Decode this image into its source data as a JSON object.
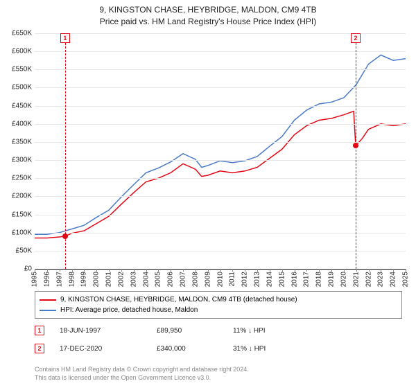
{
  "title_line1": "9, KINGSTON CHASE, HEYBRIDGE, MALDON, CM9 4TB",
  "title_line2": "Price paid vs. HM Land Registry's House Price Index (HPI)",
  "chart": {
    "type": "line",
    "background_color": "#ffffff",
    "grid_color": "#e6e6e6",
    "axis_color": "#000000",
    "font_size_labels": 10,
    "ylim": [
      0,
      650000
    ],
    "ytick_step": 50000,
    "y_tick_labels": [
      "£0",
      "£50K",
      "£100K",
      "£150K",
      "£200K",
      "£250K",
      "£300K",
      "£350K",
      "£400K",
      "£450K",
      "£500K",
      "£550K",
      "£600K",
      "£650K"
    ],
    "xlim": [
      1995,
      2025
    ],
    "x_ticks": [
      1995,
      1996,
      1997,
      1998,
      1999,
      2000,
      2001,
      2002,
      2003,
      2004,
      2005,
      2006,
      2007,
      2008,
      2009,
      2010,
      2011,
      2012,
      2013,
      2014,
      2015,
      2016,
      2017,
      2018,
      2019,
      2020,
      2021,
      2022,
      2023,
      2024,
      2025
    ],
    "series": [
      {
        "name": "property",
        "color": "#e30613",
        "line_width": 1.5,
        "label": "9, KINGSTON CHASE, HEYBRIDGE, MALDON, CM9 4TB (detached house)",
        "points": [
          [
            1995,
            85000
          ],
          [
            1996,
            85000
          ],
          [
            1997,
            88000
          ],
          [
            1997.46,
            89950
          ],
          [
            1998,
            98000
          ],
          [
            1999,
            105000
          ],
          [
            2000,
            125000
          ],
          [
            2001,
            145000
          ],
          [
            2002,
            178000
          ],
          [
            2003,
            210000
          ],
          [
            2004,
            240000
          ],
          [
            2005,
            250000
          ],
          [
            2006,
            265000
          ],
          [
            2007,
            290000
          ],
          [
            2008,
            275000
          ],
          [
            2008.5,
            255000
          ],
          [
            2009,
            258000
          ],
          [
            2010,
            270000
          ],
          [
            2011,
            265000
          ],
          [
            2012,
            270000
          ],
          [
            2013,
            280000
          ],
          [
            2014,
            305000
          ],
          [
            2015,
            330000
          ],
          [
            2016,
            370000
          ],
          [
            2017,
            395000
          ],
          [
            2018,
            410000
          ],
          [
            2019,
            415000
          ],
          [
            2020,
            425000
          ],
          [
            2020.8,
            435000
          ],
          [
            2020.96,
            340000
          ],
          [
            2021.5,
            360000
          ],
          [
            2022,
            385000
          ],
          [
            2023,
            400000
          ],
          [
            2024,
            395000
          ],
          [
            2025,
            400000
          ]
        ]
      },
      {
        "name": "hpi",
        "color": "#4a7bc8",
        "line_width": 1.5,
        "label": "HPI: Average price, detached house, Maldon",
        "points": [
          [
            1995,
            95000
          ],
          [
            1996,
            95000
          ],
          [
            1997,
            100000
          ],
          [
            1998,
            110000
          ],
          [
            1999,
            120000
          ],
          [
            2000,
            142000
          ],
          [
            2001,
            162000
          ],
          [
            2002,
            198000
          ],
          [
            2003,
            232000
          ],
          [
            2004,
            265000
          ],
          [
            2005,
            278000
          ],
          [
            2006,
            295000
          ],
          [
            2007,
            318000
          ],
          [
            2008,
            302000
          ],
          [
            2008.5,
            280000
          ],
          [
            2009,
            285000
          ],
          [
            2010,
            298000
          ],
          [
            2011,
            293000
          ],
          [
            2012,
            298000
          ],
          [
            2013,
            310000
          ],
          [
            2014,
            338000
          ],
          [
            2015,
            365000
          ],
          [
            2016,
            410000
          ],
          [
            2017,
            438000
          ],
          [
            2018,
            455000
          ],
          [
            2019,
            460000
          ],
          [
            2020,
            472000
          ],
          [
            2021,
            508000
          ],
          [
            2022,
            565000
          ],
          [
            2023,
            590000
          ],
          [
            2024,
            575000
          ],
          [
            2025,
            580000
          ]
        ]
      }
    ],
    "markers": [
      {
        "num": "1",
        "year": 1997.46,
        "color": "#e30613"
      },
      {
        "num": "2",
        "year": 2020.96,
        "color": "#e30613"
      }
    ],
    "data_dots": [
      {
        "year": 1997.46,
        "value": 89950,
        "color": "#e30613"
      },
      {
        "year": 2020.96,
        "value": 340000,
        "color": "#e30613"
      }
    ]
  },
  "legend": {
    "border_color": "#888888"
  },
  "transactions": [
    {
      "num": "1",
      "date": "18-JUN-1997",
      "price": "£89,950",
      "delta": "11% ↓ HPI",
      "color": "#e30613"
    },
    {
      "num": "2",
      "date": "17-DEC-2020",
      "price": "£340,000",
      "delta": "31% ↓ HPI",
      "color": "#e30613"
    }
  ],
  "footer_line1": "Contains HM Land Registry data © Crown copyright and database right 2024.",
  "footer_line2": "This data is licensed under the Open Government Licence v3.0."
}
